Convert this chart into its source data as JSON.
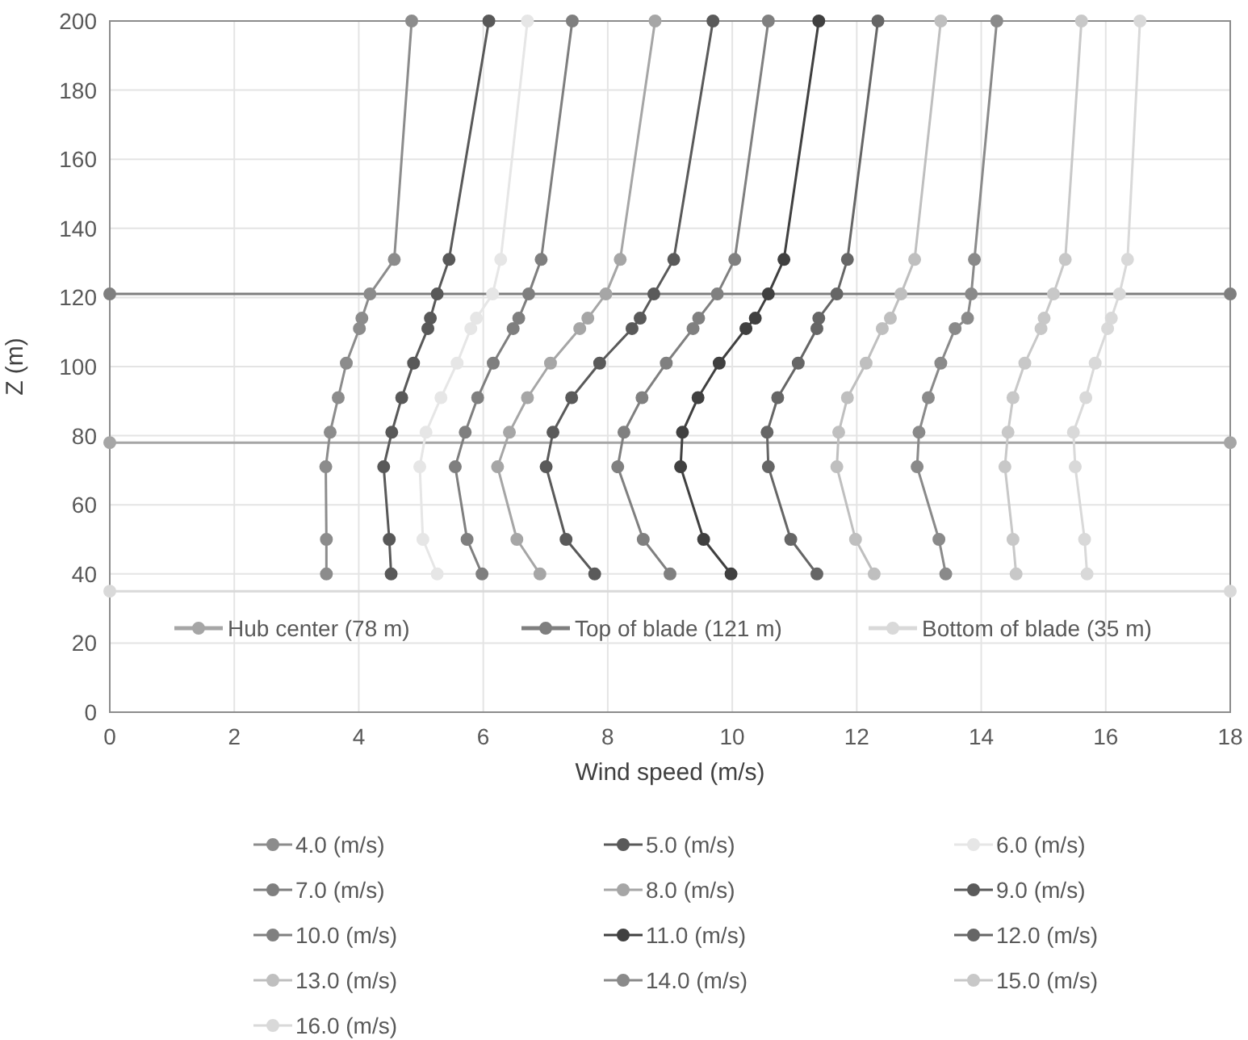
{
  "chart_data": {
    "type": "line",
    "xlabel": "Wind speed (m/s)",
    "ylabel": "Z (m)",
    "xlim": [
      0,
      18
    ],
    "ylim": [
      0,
      200
    ],
    "xticks": [
      0,
      2,
      4,
      6,
      8,
      10,
      12,
      14,
      16,
      18
    ],
    "yticks": [
      0,
      20,
      40,
      60,
      80,
      100,
      120,
      140,
      160,
      180,
      200
    ],
    "grid": true,
    "legend": "bottom",
    "marker": "circle",
    "line_style": "solid",
    "series": [
      {
        "name": "Hub center (78 m)",
        "color": "#a6a6a6",
        "x": [
          0,
          18
        ],
        "values": [
          78,
          78
        ]
      },
      {
        "name": "Top of blade (121 m)",
        "color": "#7f7f7f",
        "x": [
          0,
          18
        ],
        "values": [
          121,
          121
        ]
      },
      {
        "name": "Bottom of blade (35 m)",
        "color": "#d9d9d9",
        "x": [
          0,
          18
        ],
        "values": [
          35,
          35
        ]
      },
      {
        "name": "4.0 (m/s)",
        "color": "#8c8c8c",
        "x": [
          3.48,
          3.48,
          3.47,
          3.54,
          3.67,
          3.8,
          4.01,
          4.05,
          4.18,
          4.57,
          4.85
        ],
        "values": [
          40,
          50,
          71,
          81,
          91,
          101,
          111,
          114,
          121,
          131,
          200
        ]
      },
      {
        "name": "5.0 (m/s)",
        "color": "#595959",
        "x": [
          4.52,
          4.49,
          4.4,
          4.53,
          4.69,
          4.88,
          5.11,
          5.15,
          5.26,
          5.45,
          6.09
        ],
        "values": [
          40,
          50,
          71,
          81,
          91,
          101,
          111,
          114,
          121,
          131,
          200
        ]
      },
      {
        "name": "6.0 (m/s)",
        "color": "#e6e6e6",
        "x": [
          5.26,
          5.03,
          4.98,
          5.08,
          5.32,
          5.58,
          5.8,
          5.89,
          6.15,
          6.28,
          6.71
        ],
        "values": [
          40,
          50,
          71,
          81,
          91,
          101,
          111,
          114,
          121,
          131,
          200
        ]
      },
      {
        "name": "7.0 (m/s)",
        "color": "#7f7f7f",
        "x": [
          5.98,
          5.74,
          5.55,
          5.71,
          5.91,
          6.16,
          6.48,
          6.57,
          6.73,
          6.93,
          7.43
        ],
        "values": [
          40,
          50,
          71,
          81,
          91,
          101,
          111,
          114,
          121,
          131,
          200
        ]
      },
      {
        "name": "8.0 (m/s)",
        "color": "#a6a6a6",
        "x": [
          6.91,
          6.54,
          6.23,
          6.42,
          6.71,
          7.08,
          7.55,
          7.68,
          7.97,
          8.2,
          8.76
        ],
        "values": [
          40,
          50,
          71,
          81,
          91,
          101,
          111,
          114,
          121,
          131,
          200
        ]
      },
      {
        "name": "9.0 (m/s)",
        "color": "#5a5a5a",
        "x": [
          7.79,
          7.33,
          7.01,
          7.12,
          7.42,
          7.87,
          8.39,
          8.52,
          8.74,
          9.06,
          9.69
        ],
        "values": [
          40,
          50,
          71,
          81,
          91,
          101,
          111,
          114,
          121,
          131,
          200
        ]
      },
      {
        "name": "10.0 (m/s)",
        "color": "#808080",
        "x": [
          9.0,
          8.57,
          8.16,
          8.26,
          8.55,
          8.94,
          9.37,
          9.46,
          9.76,
          10.04,
          10.58
        ],
        "values": [
          40,
          50,
          71,
          81,
          91,
          101,
          111,
          114,
          121,
          131,
          200
        ]
      },
      {
        "name": "11.0 (m/s)",
        "color": "#404040",
        "x": [
          9.98,
          9.54,
          9.17,
          9.2,
          9.45,
          9.79,
          10.22,
          10.37,
          10.58,
          10.83,
          11.39
        ],
        "values": [
          40,
          50,
          71,
          81,
          91,
          101,
          111,
          114,
          121,
          131,
          200
        ]
      },
      {
        "name": "12.0 (m/s)",
        "color": "#666666",
        "x": [
          11.36,
          10.94,
          10.58,
          10.56,
          10.73,
          11.06,
          11.36,
          11.39,
          11.68,
          11.85,
          12.34
        ],
        "values": [
          40,
          50,
          71,
          81,
          91,
          101,
          111,
          114,
          121,
          131,
          200
        ]
      },
      {
        "name": "13.0 (m/s)",
        "color": "#bfbfbf",
        "x": [
          12.28,
          11.98,
          11.68,
          11.71,
          11.85,
          12.15,
          12.41,
          12.54,
          12.71,
          12.93,
          13.35
        ],
        "values": [
          40,
          50,
          71,
          81,
          91,
          101,
          111,
          114,
          121,
          131,
          200
        ]
      },
      {
        "name": "14.0 (m/s)",
        "color": "#8a8a8a",
        "x": [
          13.43,
          13.32,
          12.97,
          13.0,
          13.15,
          13.35,
          13.58,
          13.78,
          13.84,
          13.89,
          14.25
        ],
        "values": [
          40,
          50,
          71,
          81,
          91,
          101,
          111,
          114,
          121,
          131,
          200
        ]
      },
      {
        "name": "15.0 (m/s)",
        "color": "#c8c8c8",
        "x": [
          14.56,
          14.51,
          14.38,
          14.43,
          14.51,
          14.7,
          14.96,
          15.01,
          15.16,
          15.35,
          15.61
        ],
        "values": [
          40,
          50,
          71,
          81,
          91,
          101,
          111,
          114,
          121,
          131,
          200
        ]
      },
      {
        "name": "16.0 (m/s)",
        "color": "#d9d9d9",
        "x": [
          15.7,
          15.66,
          15.51,
          15.48,
          15.68,
          15.83,
          16.03,
          16.09,
          16.22,
          16.35,
          16.55
        ],
        "values": [
          40,
          50,
          71,
          81,
          91,
          101,
          111,
          114,
          121,
          131,
          200
        ]
      }
    ]
  }
}
